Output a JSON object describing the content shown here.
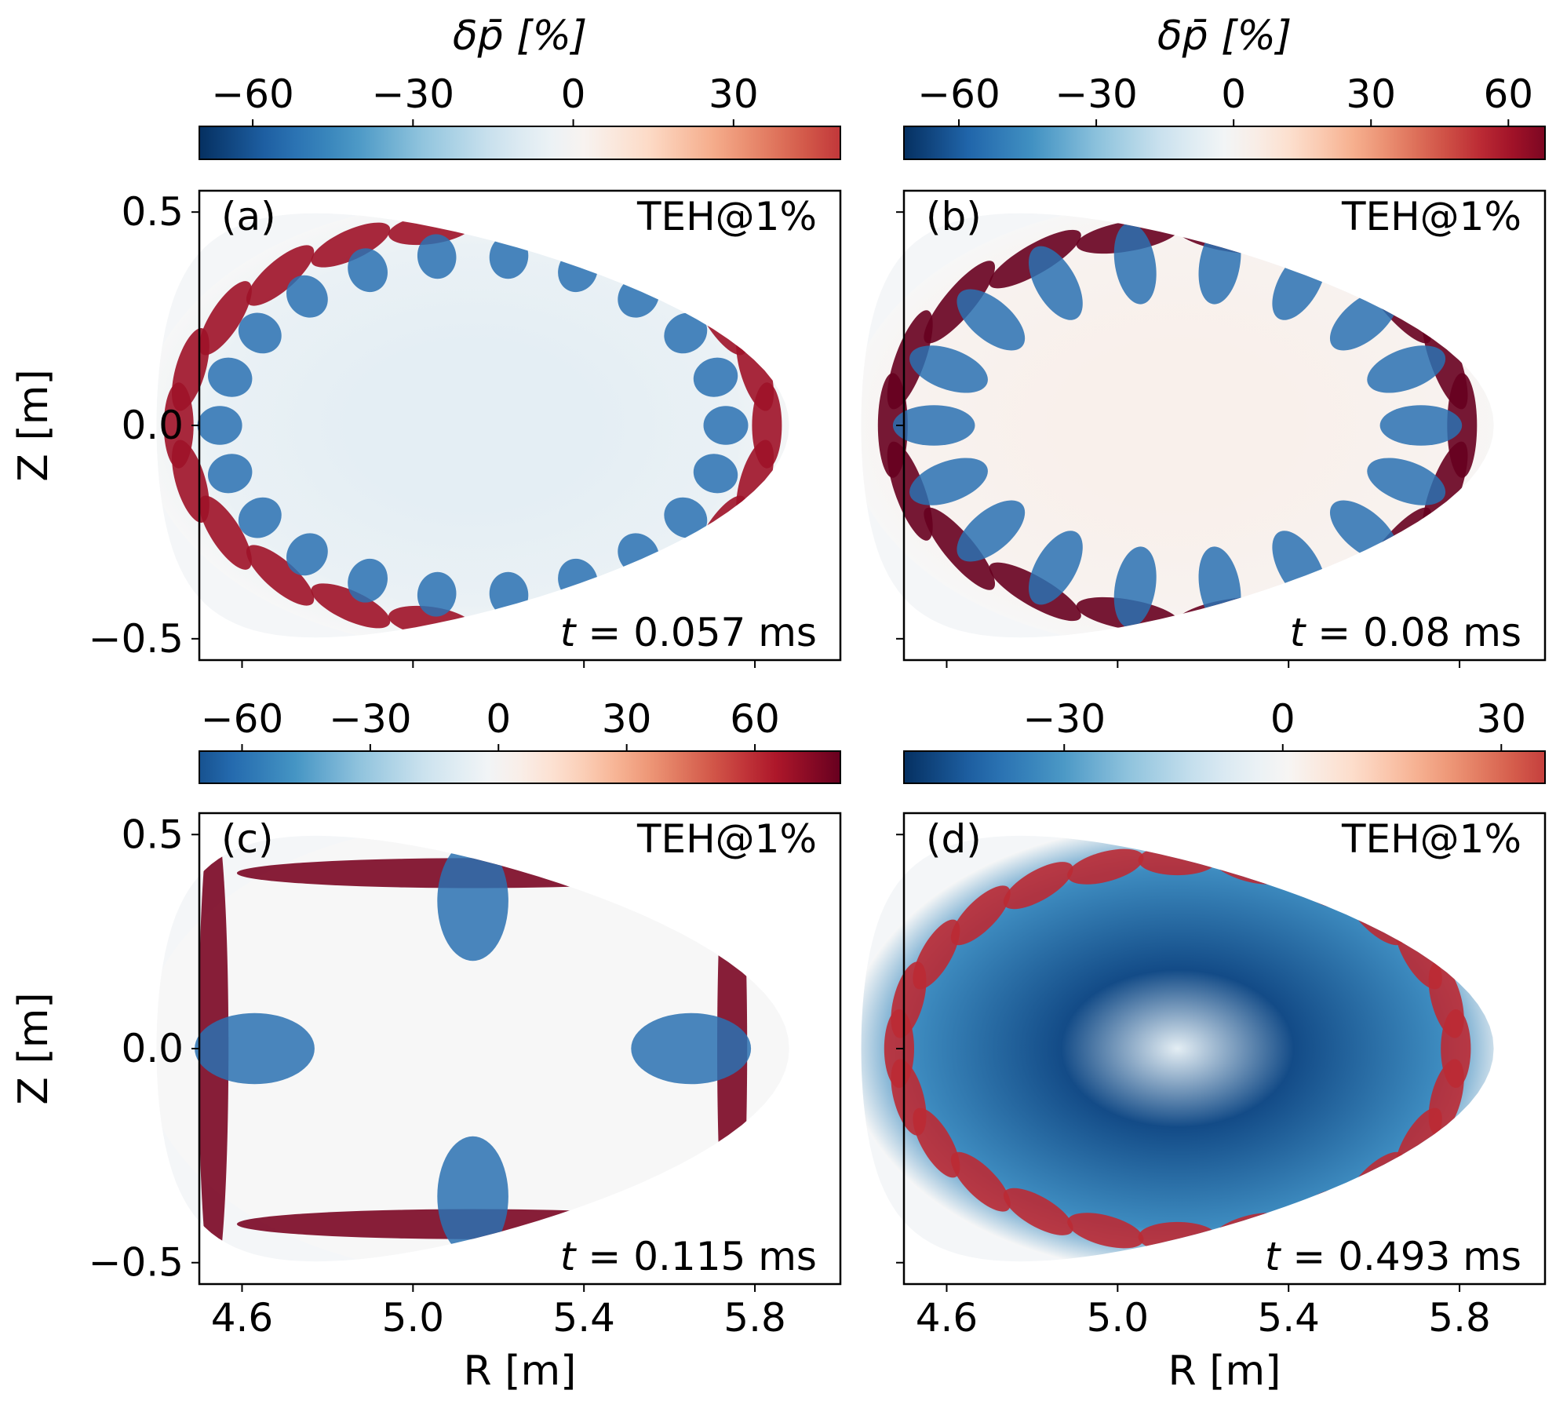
{
  "chart_data": [
    {
      "type": "heatmap",
      "panel": "(a)",
      "case_label": "TEH@1%",
      "time_label": "t = 0.057 ms",
      "time_value": "0.057 ms",
      "colorbar": {
        "title": "δp̄ [%]",
        "range": [
          -70,
          50
        ],
        "ticks": [
          -60,
          -30,
          0,
          30
        ],
        "tick_labels": [
          "−60",
          "−30",
          "0",
          "30"
        ],
        "colormap": "RdBu_r"
      },
      "xlabel": "",
      "ylabel": "Z [m]",
      "xlim": [
        4.5,
        6.0
      ],
      "ylim": [
        -0.55,
        0.55
      ],
      "xticks": [
        4.6,
        5.0,
        5.4,
        5.8
      ],
      "xtick_labels": [],
      "yticks": [
        -0.5,
        0.0,
        0.5
      ],
      "ytick_labels": [
        "−0.5",
        "0.0",
        "0.5"
      ],
      "structure": {
        "finger_count": 22,
        "inner_fraction": 0.7,
        "outer_fraction": 0.93,
        "core_level": -0.1,
        "edge_level": 0.85
      }
    },
    {
      "type": "heatmap",
      "panel": "(b)",
      "case_label": "TEH@1%",
      "time_label": "t = 0.08 ms",
      "time_value": "0.08 ms",
      "colorbar": {
        "title": "δp̄ [%]",
        "range": [
          -72,
          68
        ],
        "ticks": [
          -60,
          -30,
          0,
          30,
          60
        ],
        "tick_labels": [
          "−60",
          "−30",
          "0",
          "30",
          "60"
        ],
        "colormap": "RdBu_r"
      },
      "xlabel": "",
      "ylabel": "",
      "xlim": [
        4.5,
        6.0
      ],
      "ylim": [
        -0.55,
        0.55
      ],
      "xticks": [
        4.6,
        5.0,
        5.4,
        5.8
      ],
      "xtick_labels": [],
      "yticks": [
        -0.5,
        0.0,
        0.5
      ],
      "ytick_labels": [],
      "structure": {
        "finger_count": 18,
        "inner_fraction": 0.45,
        "outer_fraction": 0.9,
        "core_level": 0.05,
        "edge_level": 1.0
      }
    },
    {
      "type": "heatmap",
      "panel": "(c)",
      "case_label": "TEH@1%",
      "time_label": "t = 0.115 ms",
      "time_value": "0.115 ms",
      "colorbar": {
        "title": "",
        "range": [
          -70,
          80
        ],
        "ticks": [
          -60,
          -30,
          0,
          30,
          60
        ],
        "tick_labels": [
          "−60",
          "−30",
          "0",
          "30",
          "60"
        ],
        "colormap": "RdBu_r"
      },
      "xlabel": "R [m]",
      "ylabel": "Z [m]",
      "xlim": [
        4.5,
        6.0
      ],
      "ylim": [
        -0.55,
        0.55
      ],
      "xticks": [
        4.6,
        5.0,
        5.4,
        5.8
      ],
      "xtick_labels": [
        "4.6",
        "5.0",
        "5.4",
        "5.8"
      ],
      "yticks": [
        -0.5,
        0.0,
        0.5
      ],
      "ytick_labels": [
        "−0.5",
        "0.0",
        "0.5"
      ],
      "structure": {
        "finger_count": 4,
        "inner_fraction": 0.2,
        "outer_fraction": 0.82,
        "core_level": 0.0,
        "edge_level": 0.95
      }
    },
    {
      "type": "heatmap",
      "panel": "(d)",
      "case_label": "TEH@1%",
      "time_label": "t = 0.493 ms",
      "time_value": "0.493 ms",
      "colorbar": {
        "title": "",
        "range": [
          -52,
          36
        ],
        "ticks": [
          -30,
          0,
          30
        ],
        "tick_labels": [
          "−30",
          "0",
          "30"
        ],
        "colormap": "RdBu_r"
      },
      "xlabel": "R [m]",
      "ylabel": "",
      "xlim": [
        4.5,
        6.0
      ],
      "ylim": [
        -0.55,
        0.55
      ],
      "xticks": [
        4.6,
        5.0,
        5.4,
        5.8
      ],
      "xtick_labels": [
        "4.6",
        "5.0",
        "5.4",
        "5.8"
      ],
      "yticks": [
        -0.5,
        0.0,
        0.5
      ],
      "ytick_labels": [],
      "structure": {
        "finger_count": 24,
        "inner_fraction": 0.0,
        "outer_fraction": 0.88,
        "core_level": -0.9,
        "edge_level": 0.75
      }
    }
  ],
  "colors": {
    "colormap_stops": [
      "#053061",
      "#2166ac",
      "#4393c3",
      "#92c5de",
      "#d1e5f0",
      "#f7f7f7",
      "#fddbc7",
      "#f4a582",
      "#d6604d",
      "#b2182b",
      "#67001f"
    ],
    "outside": "#f4f6f8",
    "background": "#ffffff",
    "frame": "#000000"
  }
}
